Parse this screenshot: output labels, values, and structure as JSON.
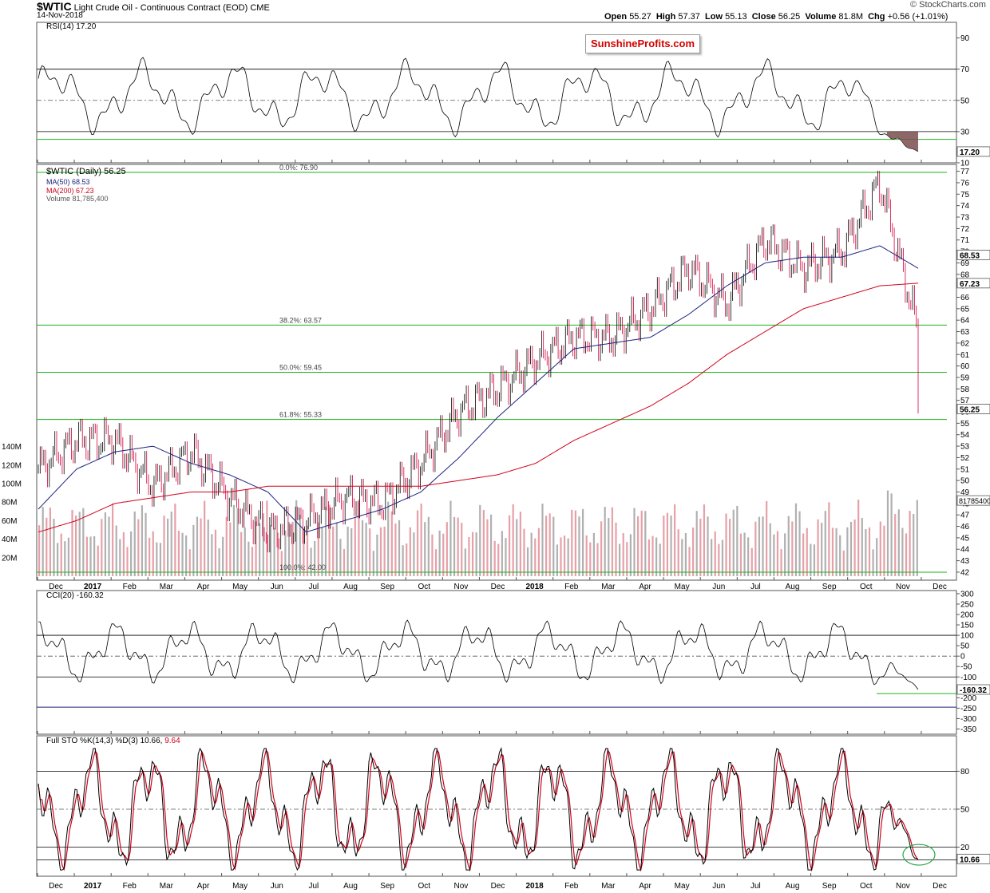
{
  "header": {
    "symbol": "$WTIC",
    "name": "Light Crude Oil - Continuous Contract (EOD)",
    "exchange": "CME",
    "date": "14-Nov-2018",
    "copyright": "© StockCharts.com",
    "open_label": "Open",
    "open": "55.27",
    "high_label": "High",
    "high": "57.37",
    "low_label": "Low",
    "low": "55.13",
    "close_label": "Close",
    "close": "56.25",
    "volume_label": "Volume",
    "volume": "81.8M",
    "chg_label": "Chg",
    "chg": "+0.56 (+1.01%)"
  },
  "watermark": "SunshineProfits.com",
  "rsi": {
    "title": "RSI(14) 17.20",
    "ticks": [
      "90",
      "70",
      "50",
      "30",
      "10"
    ],
    "last_label": "17.20"
  },
  "price": {
    "legend_title": "$WTIC (Daily) 56.25",
    "ma50_label": "MA(50) 68.53",
    "ma200_label": "MA(200) 67.23",
    "volume_label": "Volume 81,785,400",
    "ticks": [
      "77",
      "76",
      "75",
      "74",
      "73",
      "72",
      "71",
      "70",
      "69",
      "68",
      "67",
      "66",
      "65",
      "64",
      "63",
      "62",
      "61",
      "60",
      "59",
      "58",
      "57",
      "56",
      "55",
      "54",
      "53",
      "52",
      "51",
      "50",
      "49",
      "48",
      "47",
      "46",
      "45",
      "44",
      "43",
      "42"
    ],
    "volume_ticks": [
      "140M",
      "120M",
      "100M",
      "80M",
      "60M",
      "40M",
      "20M"
    ],
    "fib": [
      {
        "label": "0.0%: 76.90",
        "value": 76.9
      },
      {
        "label": "38.2%: 63.57",
        "value": 63.57
      },
      {
        "label": "50.0%: 59.45",
        "value": 59.45
      },
      {
        "label": "61.8%: 55.33",
        "value": 55.33
      },
      {
        "label": "100.0%: 42.00",
        "value": 42.0
      }
    ],
    "last_price_label": "56.25",
    "ma50_tag": "68.53",
    "ma200_tag": "67.23",
    "volume_tag": "81785400"
  },
  "x_axis": {
    "labels": [
      "Dec",
      "2017",
      "Feb",
      "Mar",
      "Apr",
      "May",
      "Jun",
      "Jul",
      "Aug",
      "Sep",
      "Oct",
      "Nov",
      "Dec",
      "2018",
      "Feb",
      "Mar",
      "Apr",
      "May",
      "Jun",
      "Jul",
      "Aug",
      "Sep",
      "Oct",
      "Nov",
      "Dec"
    ]
  },
  "cci": {
    "title": "CCI(20) -160.32",
    "ticks": [
      "300",
      "250",
      "200",
      "150",
      "100",
      "50",
      "0",
      "-50",
      "-100",
      "-150",
      "-200",
      "-250",
      "-300",
      "-350"
    ],
    "last_label": "-160.32"
  },
  "sto": {
    "title_k": "Full STO %K(14,3) %D(3) 10.66,",
    "title_d": "9.64",
    "ticks": [
      "80",
      "50",
      "20"
    ],
    "last_label": "10.66"
  },
  "colors": {
    "up_candle": "#000000",
    "down_candle": "#d4003b",
    "ma50": "#1a237e",
    "ma200": "#d0021b",
    "fib_line": "#1db31d",
    "rsi_overbought_fill": "#4e7a4e",
    "rsi_oversold_fill": "#7a4e4e",
    "volume_up": "#b0b0b0",
    "volume_down": "#e6a0a8",
    "sto_k": "#000000",
    "sto_d": "#d0021b",
    "annotation_circle": "#2aa84a"
  },
  "chart_data": [
    {
      "type": "line",
      "title": "RSI(14) 17.20",
      "ylim": [
        10,
        100
      ],
      "series": [
        {
          "name": "RSI(14)",
          "last": 17.2
        }
      ],
      "reference_lines": [
        70,
        50,
        30
      ]
    },
    {
      "type": "line",
      "title": "$WTIC (Daily) 56.25",
      "ylim": [
        42,
        77
      ],
      "x": [
        "Dec",
        "2017",
        "Feb",
        "Mar",
        "Apr",
        "May",
        "Jun",
        "Jul",
        "Aug",
        "Sep",
        "Oct",
        "Nov",
        "Dec",
        "2018",
        "Feb",
        "Mar",
        "Apr",
        "May",
        "Jun",
        "Jul",
        "Aug",
        "Sep",
        "Oct",
        "Nov"
      ],
      "series": [
        {
          "name": "$WTIC",
          "values": [
            51.0,
            53.5,
            53.5,
            49.5,
            52.5,
            48.5,
            45.5,
            46.5,
            48.5,
            48.0,
            51.5,
            56.0,
            58.0,
            60.5,
            62.5,
            62.5,
            65.0,
            68.5,
            65.5,
            71.0,
            68.5,
            70.0,
            76.0,
            63.0
          ],
          "last": 56.25
        },
        {
          "name": "MA(50) 68.53",
          "values": [
            47.5,
            51.0,
            52.5,
            53.0,
            51.5,
            50.5,
            49.0,
            45.5,
            46.5,
            47.5,
            49.0,
            52.0,
            55.5,
            58.5,
            61.5,
            62.0,
            62.5,
            64.5,
            67.0,
            69.0,
            69.5,
            69.5,
            70.5,
            68.53
          ]
        },
        {
          "name": "MA(200) 67.23",
          "values": [
            45.5,
            46.5,
            48.0,
            48.5,
            49.0,
            49.0,
            49.5,
            49.5,
            49.5,
            49.5,
            49.5,
            50.0,
            50.5,
            51.5,
            53.5,
            55.0,
            56.5,
            58.5,
            61.0,
            63.0,
            65.0,
            66.0,
            67.0,
            67.23
          ]
        }
      ],
      "fib_levels": [
        76.9,
        63.57,
        59.45,
        55.33,
        42.0
      ]
    },
    {
      "type": "line",
      "title": "CCI(20) -160.32",
      "ylim": [
        -350,
        300
      ],
      "series": [
        {
          "name": "CCI(20)",
          "last": -160.32
        }
      ],
      "reference_lines": [
        100,
        0,
        -100
      ]
    },
    {
      "type": "line",
      "title": "Full STO %K(14,3) %D(3) 10.66, 9.64",
      "ylim": [
        0,
        100
      ],
      "series": [
        {
          "name": "%K",
          "last": 10.66
        },
        {
          "name": "%D",
          "last": 9.64
        }
      ],
      "reference_lines": [
        80,
        50,
        20
      ]
    }
  ]
}
